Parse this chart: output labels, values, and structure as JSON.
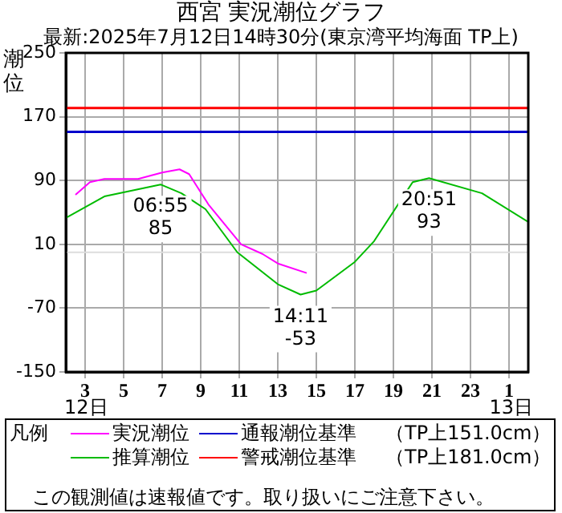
{
  "chart_data": {
    "type": "line",
    "title": "西宮 実況潮位グラフ",
    "subtitle": "最新:2025年7月12日14時30分(東京湾平均海面 TP上)",
    "ylabel": "潮位",
    "legend_title": "凡例",
    "xlim": [
      "2025-07-12T02:00",
      "2025-07-13T02:00"
    ],
    "xticks": [
      {
        "value": "2025-07-12T03:00",
        "label": "3"
      },
      {
        "value": "2025-07-12T05:00",
        "label": "5"
      },
      {
        "value": "2025-07-12T07:00",
        "label": "7"
      },
      {
        "value": "2025-07-12T09:00",
        "label": "9"
      },
      {
        "value": "2025-07-12T11:00",
        "label": "11"
      },
      {
        "value": "2025-07-12T13:00",
        "label": "13"
      },
      {
        "value": "2025-07-12T15:00",
        "label": "15"
      },
      {
        "value": "2025-07-12T17:00",
        "label": "17"
      },
      {
        "value": "2025-07-12T19:00",
        "label": "19"
      },
      {
        "value": "2025-07-12T21:00",
        "label": "21"
      },
      {
        "value": "2025-07-12T23:00",
        "label": "23"
      },
      {
        "value": "2025-07-13T01:00",
        "label": "1"
      }
    ],
    "ylim": [
      -150,
      250
    ],
    "yticks": [
      -150,
      -70,
      10,
      90,
      170,
      250
    ],
    "grid": true,
    "legend": "bottom",
    "series": [
      {
        "name": "実況潮位",
        "color": "#ff00ff",
        "x": [
          "2025-07-12T02:30",
          "2025-07-12T03:15",
          "2025-07-12T04:00",
          "2025-07-12T05:45",
          "2025-07-12T07:00",
          "2025-07-12T07:54",
          "2025-07-12T08:24",
          "2025-07-12T09:24",
          "2025-07-12T11:06",
          "2025-07-12T12:12",
          "2025-07-12T13:00",
          "2025-07-12T14:30"
        ],
        "values": [
          72,
          88,
          92,
          92,
          100,
          104,
          98,
          60,
          10,
          -2,
          -14,
          -26
        ]
      },
      {
        "name": "推算潮位",
        "color": "#00bb00",
        "x": [
          "2025-07-12T02:00",
          "2025-07-12T04:00",
          "2025-07-12T06:55",
          "2025-07-12T08:00",
          "2025-07-12T09:15",
          "2025-07-12T10:54",
          "2025-07-12T13:00",
          "2025-07-12T14:11",
          "2025-07-12T15:00",
          "2025-07-12T17:00",
          "2025-07-12T18:00",
          "2025-07-12T20:00",
          "2025-07-12T20:51",
          "2025-07-12T23:36",
          "2025-07-13T02:00"
        ],
        "values": [
          43,
          70,
          85,
          74,
          54,
          0,
          -40,
          -53,
          -48,
          -12,
          14,
          88,
          93,
          74,
          38
        ]
      }
    ],
    "ref_lines": [
      {
        "axis": "y",
        "value": 151,
        "label": "通報潮位基準",
        "color": "#0000cc"
      },
      {
        "axis": "y",
        "value": 181,
        "label": "警戒潮位基準",
        "color": "#ff0000"
      },
      {
        "axis": "y",
        "value": 0,
        "color": "#dddddd"
      }
    ],
    "annotations": [
      {
        "text": "06:55\n85",
        "x": "2025-07-12T06:55",
        "y": 85
      },
      {
        "text": "20:51\n93",
        "x": "2025-07-12T20:51",
        "y": 93
      },
      {
        "text": "14:11\n-53",
        "x": "2025-07-12T14:11",
        "y": -53
      },
      "12日",
      "13日",
      "（TP上151.0cm）",
      "（TP上181.0cm）",
      "この観測値は速報値です。取り扱いにご注意下さい。"
    ]
  }
}
